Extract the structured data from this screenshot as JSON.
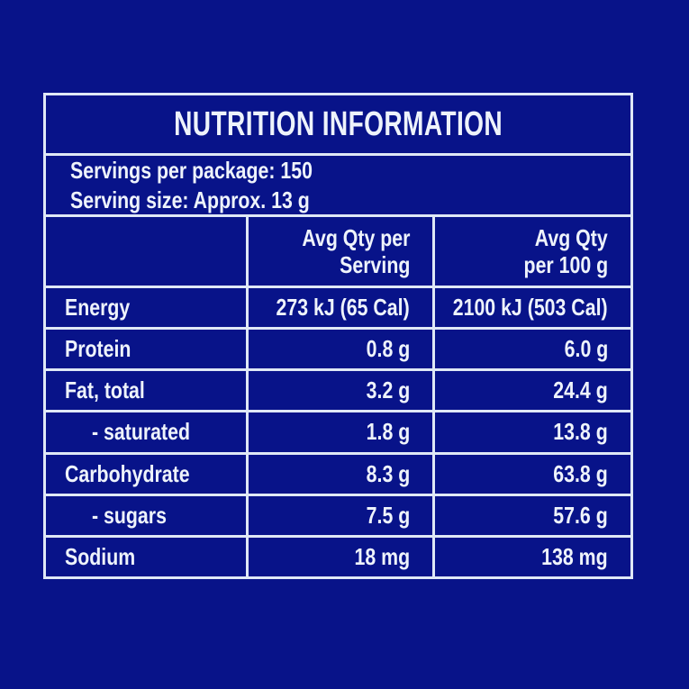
{
  "colors": {
    "background": "#081389",
    "grid_line": "#dfe8f6",
    "text": "#eef3fb"
  },
  "label": {
    "title": "NUTRITION INFORMATION",
    "servings_per_package": "Servings per package: 150",
    "serving_size": "Serving size: Approx. 13 g",
    "columns": {
      "per_serving": {
        "line1": "Avg Qty per",
        "line2": "Serving"
      },
      "per_100g": {
        "line1": "Avg Qty",
        "line2": "per 100 g"
      }
    },
    "rows": [
      {
        "nutrient": "Energy",
        "per_serving": "273 kJ (65 Cal)",
        "per_100g": "2100 kJ (503 Cal)"
      },
      {
        "nutrient": "Protein",
        "per_serving": "0.8 g",
        "per_100g": "6.0 g"
      },
      {
        "nutrient": "Fat, total",
        "per_serving": "3.2 g",
        "per_100g": "24.4 g"
      },
      {
        "nutrient": "- saturated",
        "per_serving": "1.8 g",
        "per_100g": "13.8 g"
      },
      {
        "nutrient": "Carbohydrate",
        "per_serving": "8.3 g",
        "per_100g": "63.8 g"
      },
      {
        "nutrient": "- sugars",
        "per_serving": "7.5 g",
        "per_100g": "57.6 g"
      },
      {
        "nutrient": "Sodium",
        "per_serving": "18 mg",
        "per_100g": "138 mg"
      }
    ]
  }
}
